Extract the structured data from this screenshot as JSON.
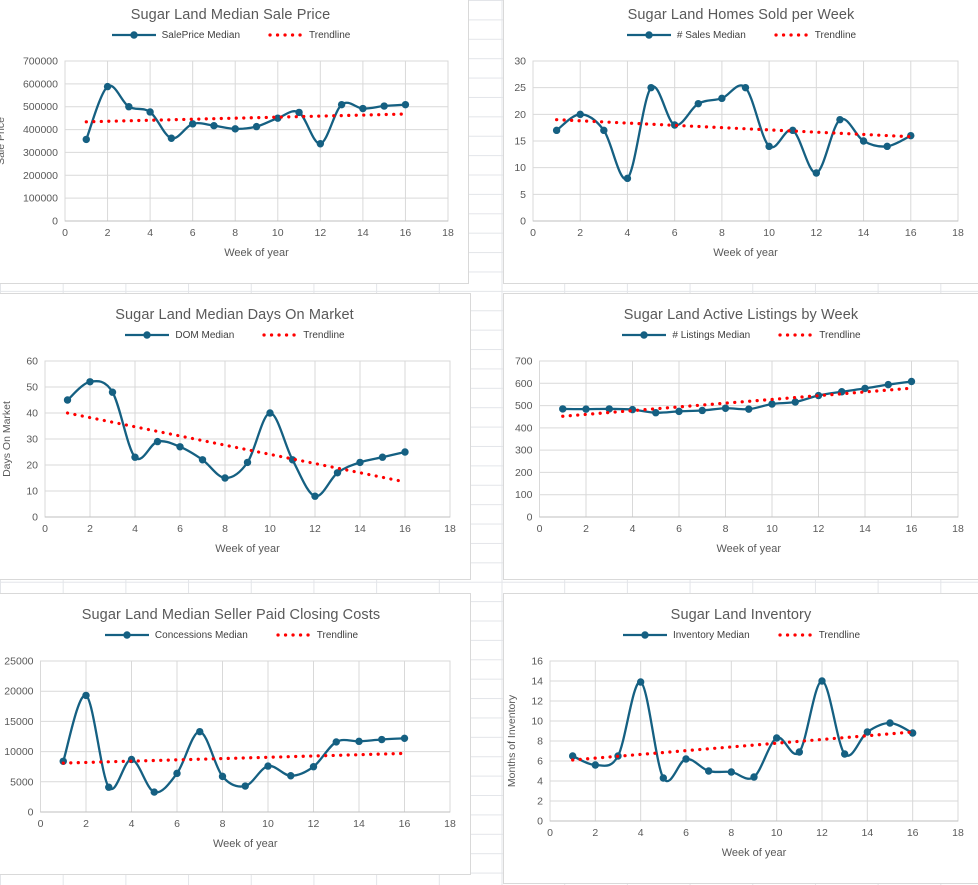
{
  "colors": {
    "series": "#156082",
    "trendline": "#FF0000",
    "title_text": "#595959",
    "axis_text": "#595959",
    "gridline": "#d9d9d9",
    "plot_border": "#d9d9d9",
    "axis_line": "#bfbfbf",
    "sheet_gridline": "#e3e5e9"
  },
  "chart_data": [
    {
      "type": "line",
      "title": "Sugar Land Median Sale Price",
      "xlabel": "Week of year",
      "ylabel": "Sale Price",
      "legend": [
        "SalePrice Median",
        "Trendline"
      ],
      "x": [
        1,
        2,
        3,
        4,
        5,
        6,
        7,
        8,
        9,
        10,
        11,
        12,
        13,
        14,
        15,
        16
      ],
      "series": [
        {
          "name": "SalePrice Median",
          "values": [
            357000,
            588000,
            500000,
            477000,
            362000,
            425000,
            417000,
            403000,
            413000,
            450000,
            475000,
            338000,
            509000,
            492000,
            503000,
            509000
          ]
        },
        {
          "name": "Trendline",
          "trend": true,
          "start": 434000,
          "end": 468000
        }
      ],
      "xlim": [
        0,
        18
      ],
      "xtick_step": 2,
      "ylim": [
        0,
        700000
      ],
      "ytick_step": 100000,
      "grid": true,
      "legend_position": "top"
    },
    {
      "type": "line",
      "title": "Sugar Land Homes Sold per Week",
      "xlabel": "Week of year",
      "ylabel": "",
      "legend": [
        "# Sales Median",
        "Trendline"
      ],
      "x": [
        1,
        2,
        3,
        4,
        5,
        6,
        7,
        8,
        9,
        10,
        11,
        12,
        13,
        14,
        15,
        16
      ],
      "series": [
        {
          "name": "# Sales Median",
          "values": [
            17,
            20,
            17,
            8,
            25,
            18,
            22,
            23,
            25,
            14,
            17,
            9,
            19,
            15,
            14,
            16
          ]
        },
        {
          "name": "Trendline",
          "trend": true,
          "start": 19,
          "end": 15.8
        }
      ],
      "xlim": [
        0,
        18
      ],
      "xtick_step": 2,
      "ylim": [
        0,
        30
      ],
      "ytick_step": 5,
      "grid": true,
      "legend_position": "top"
    },
    {
      "type": "line",
      "title": "Sugar Land Median Days On Market",
      "xlabel": "Week of year",
      "ylabel": "Days On Market",
      "legend": [
        "DOM Median",
        "Trendline"
      ],
      "x": [
        1,
        2,
        3,
        4,
        5,
        6,
        7,
        8,
        9,
        10,
        11,
        12,
        13,
        14,
        15,
        16
      ],
      "series": [
        {
          "name": "DOM Median",
          "values": [
            45,
            52,
            48,
            23,
            29,
            27,
            22,
            15,
            21,
            40,
            22,
            8,
            17,
            21,
            23,
            25
          ]
        },
        {
          "name": "Trendline",
          "trend": true,
          "start": 40,
          "end": 13.5
        }
      ],
      "xlim": [
        0,
        18
      ],
      "xtick_step": 2,
      "ylim": [
        0,
        60
      ],
      "ytick_step": 10,
      "grid": true,
      "legend_position": "top"
    },
    {
      "type": "line",
      "title": "Sugar Land Active Listings by Week",
      "xlabel": "Week of year",
      "ylabel": "",
      "legend": [
        "# Listings Median",
        "Trendline"
      ],
      "x": [
        1,
        2,
        3,
        4,
        5,
        6,
        7,
        8,
        9,
        10,
        11,
        12,
        13,
        14,
        15,
        16
      ],
      "series": [
        {
          "name": "# Listings Median",
          "values": [
            485,
            484,
            485,
            482,
            468,
            474,
            478,
            488,
            484,
            507,
            516,
            545,
            562,
            577,
            594,
            608
          ]
        },
        {
          "name": "Trendline",
          "trend": true,
          "start": 452,
          "end": 578
        }
      ],
      "xlim": [
        0,
        18
      ],
      "xtick_step": 2,
      "ylim": [
        0,
        700
      ],
      "ytick_step": 100,
      "grid": true,
      "legend_position": "top"
    },
    {
      "type": "line",
      "title": "Sugar Land Median Seller Paid Closing Costs",
      "xlabel": "Week of year",
      "ylabel": "",
      "legend": [
        "Concessions Median",
        "Trendline"
      ],
      "x": [
        1,
        2,
        3,
        4,
        5,
        6,
        7,
        8,
        9,
        10,
        11,
        12,
        13,
        14,
        15,
        16
      ],
      "series": [
        {
          "name": "Concessions Median",
          "values": [
            8400,
            19300,
            4100,
            8700,
            3300,
            6400,
            13300,
            5900,
            4300,
            7600,
            6000,
            7500,
            11600,
            11700,
            12000,
            12200
          ]
        },
        {
          "name": "Trendline",
          "trend": true,
          "start": 8100,
          "end": 9700
        }
      ],
      "xlim": [
        0,
        18
      ],
      "xtick_step": 2,
      "ylim": [
        0,
        25000
      ],
      "ytick_step": 5000,
      "grid": true,
      "legend_position": "top"
    },
    {
      "type": "line",
      "title": "Sugar Land Inventory",
      "xlabel": "Week of year",
      "ylabel": "Months of Inventory",
      "legend": [
        "Inventory Median",
        "Trendline"
      ],
      "x": [
        1,
        2,
        3,
        4,
        5,
        6,
        7,
        8,
        9,
        10,
        11,
        12,
        13,
        14,
        15,
        16
      ],
      "series": [
        {
          "name": "Inventory Median",
          "values": [
            6.5,
            5.6,
            6.5,
            13.9,
            4.3,
            6.2,
            5.0,
            4.9,
            4.4,
            8.3,
            6.9,
            14.0,
            6.7,
            8.9,
            9.8,
            8.8
          ]
        },
        {
          "name": "Trendline",
          "trend": true,
          "start": 6.1,
          "end": 8.9
        }
      ],
      "xlim": [
        0,
        18
      ],
      "xtick_step": 2,
      "ylim": [
        0,
        16
      ],
      "ytick_step": 2,
      "grid": true,
      "legend_position": "top"
    }
  ]
}
